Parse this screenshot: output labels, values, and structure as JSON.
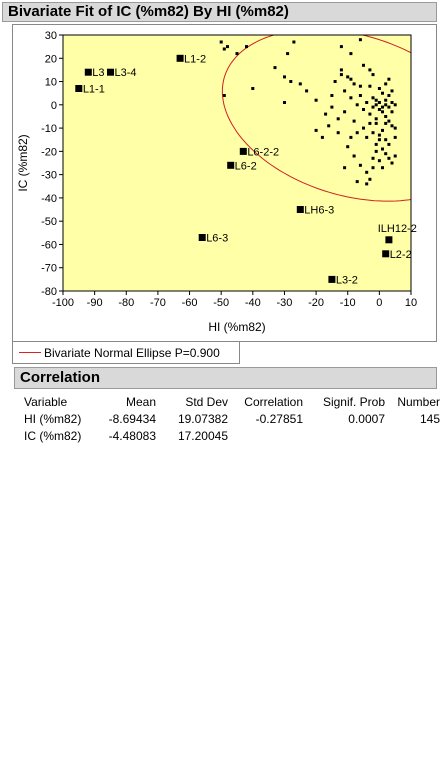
{
  "report": {
    "title": "Bivariate Fit of IC (%m82) By HI (%m82)",
    "legend_label": "Bivariate Normal Ellipse P=0.900",
    "correlation_title": "Correlation"
  },
  "colors": {
    "plot_bg": "#ffffa8",
    "ellipse": "#d22020",
    "marker": "#000000"
  },
  "correlation_table": {
    "headers": [
      "Variable",
      "Mean",
      "Std Dev",
      "Correlation",
      "Signif. Prob",
      "Number"
    ],
    "rows": [
      [
        "HI (%m82)",
        "-8.69434",
        "19.07382",
        "-0.27851",
        "0.0007",
        "145"
      ],
      [
        "IC (%m82)",
        "-4.48083",
        "17.20045",
        "",
        "",
        ""
      ]
    ]
  },
  "chart_data": {
    "type": "scatter",
    "xlabel": "HI (%m82)",
    "ylabel": "IC (%m82)",
    "xlim": [
      -100,
      10
    ],
    "ylim": [
      -80,
      30
    ],
    "xticks": [
      -100,
      -90,
      -80,
      -70,
      -60,
      -50,
      -40,
      -30,
      -20,
      -10,
      0,
      10
    ],
    "yticks": [
      30,
      20,
      10,
      0,
      -10,
      -20,
      -30,
      -40,
      -50,
      -60,
      -70,
      -80
    ],
    "grid": false,
    "labeled_points": [
      {
        "label": "L1-1",
        "x": -95,
        "y": 7
      },
      {
        "label": "L3",
        "x": -92,
        "y": 14
      },
      {
        "label": "L3-4",
        "x": -85,
        "y": 14
      },
      {
        "label": "L1-2",
        "x": -63,
        "y": 20
      },
      {
        "label": "L6-2-2",
        "x": -43,
        "y": -20
      },
      {
        "label": "L6-2",
        "x": -47,
        "y": -26
      },
      {
        "label": "LH6-3",
        "x": -25,
        "y": -45
      },
      {
        "label": "L6-3",
        "x": -56,
        "y": -57
      },
      {
        "label": "L3-2",
        "x": -15,
        "y": -75
      },
      {
        "label": "ILH12-2",
        "x": 3,
        "y": -58
      },
      {
        "label": "L2-2",
        "x": 2,
        "y": -64
      }
    ],
    "points": [
      [
        -50,
        27
      ],
      [
        -49,
        24
      ],
      [
        -48,
        25
      ],
      [
        -42,
        25
      ],
      [
        -45,
        22
      ],
      [
        -49,
        4
      ],
      [
        -40,
        7
      ],
      [
        -27,
        27
      ],
      [
        -29,
        22
      ],
      [
        -33,
        16
      ],
      [
        -30,
        12
      ],
      [
        -28,
        10
      ],
      [
        -30,
        1
      ],
      [
        -25,
        9
      ],
      [
        -23,
        6
      ],
      [
        -20,
        2
      ],
      [
        -15,
        4
      ],
      [
        -12,
        25
      ],
      [
        -9,
        22
      ],
      [
        -12,
        15
      ],
      [
        -10,
        12
      ],
      [
        -9,
        11
      ],
      [
        -8,
        9
      ],
      [
        -11,
        6
      ],
      [
        -6,
        8
      ],
      [
        -3,
        15
      ],
      [
        -2,
        13
      ],
      [
        -6,
        4
      ],
      [
        -4,
        1
      ],
      [
        -2,
        3
      ],
      [
        0,
        7
      ],
      [
        1,
        5
      ],
      [
        2,
        2
      ],
      [
        3,
        4
      ],
      [
        4,
        1
      ],
      [
        5,
        0
      ],
      [
        -1,
        0
      ],
      [
        0,
        -2
      ],
      [
        1,
        -3
      ],
      [
        2,
        -5
      ],
      [
        3,
        -7
      ],
      [
        4,
        -9
      ],
      [
        5,
        -10
      ],
      [
        -1,
        -6
      ],
      [
        -3,
        -8
      ],
      [
        -5,
        -10
      ],
      [
        -7,
        -12
      ],
      [
        -9,
        -14
      ],
      [
        -13,
        -12
      ],
      [
        -16,
        -9
      ],
      [
        -20,
        -11
      ],
      [
        -18,
        -14
      ],
      [
        -10,
        -18
      ],
      [
        -8,
        -22
      ],
      [
        -6,
        -26
      ],
      [
        -4,
        -29
      ],
      [
        -3,
        -32
      ],
      [
        -7,
        -33
      ],
      [
        -11,
        -27
      ],
      [
        -1,
        -17
      ],
      [
        0,
        -15
      ],
      [
        1,
        -19
      ],
      [
        2,
        -21
      ],
      [
        3,
        -23
      ],
      [
        4,
        -25
      ],
      [
        5,
        -22
      ],
      [
        -2,
        -1
      ],
      [
        -1,
        2
      ],
      [
        0,
        1
      ],
      [
        1,
        -1
      ],
      [
        2,
        0
      ],
      [
        3,
        -1
      ],
      [
        4,
        -3
      ],
      [
        2,
        -8
      ],
      [
        1,
        -11
      ],
      [
        0,
        -13
      ],
      [
        -2,
        -12
      ],
      [
        -4,
        -14
      ],
      [
        -1,
        -20
      ],
      [
        -2,
        -23
      ],
      [
        0,
        -24
      ],
      [
        1,
        -27
      ],
      [
        -4,
        -34
      ],
      [
        -6,
        28
      ],
      [
        2,
        -15
      ],
      [
        3,
        -17
      ],
      [
        -1,
        -8
      ],
      [
        -3,
        -4
      ],
      [
        -5,
        -2
      ],
      [
        -7,
        0
      ],
      [
        -9,
        3
      ],
      [
        -11,
        -3
      ],
      [
        -13,
        -6
      ],
      [
        -15,
        -1
      ],
      [
        -17,
        -4
      ],
      [
        -8,
        -7
      ],
      [
        2,
        9
      ],
      [
        4,
        6
      ],
      [
        -3,
        8
      ],
      [
        -12,
        13
      ],
      [
        -14,
        10
      ],
      [
        -5,
        17
      ],
      [
        3,
        11
      ],
      [
        5,
        -14
      ],
      [
        -2,
        -27
      ]
    ],
    "ellipse": {
      "label": "Bivariate Normal Ellipse P=0.900",
      "center": [
        -8.69434,
        -4.48083
      ],
      "sd": [
        19.07382,
        17.20045
      ],
      "r": -0.27851,
      "p": 0.9
    }
  }
}
